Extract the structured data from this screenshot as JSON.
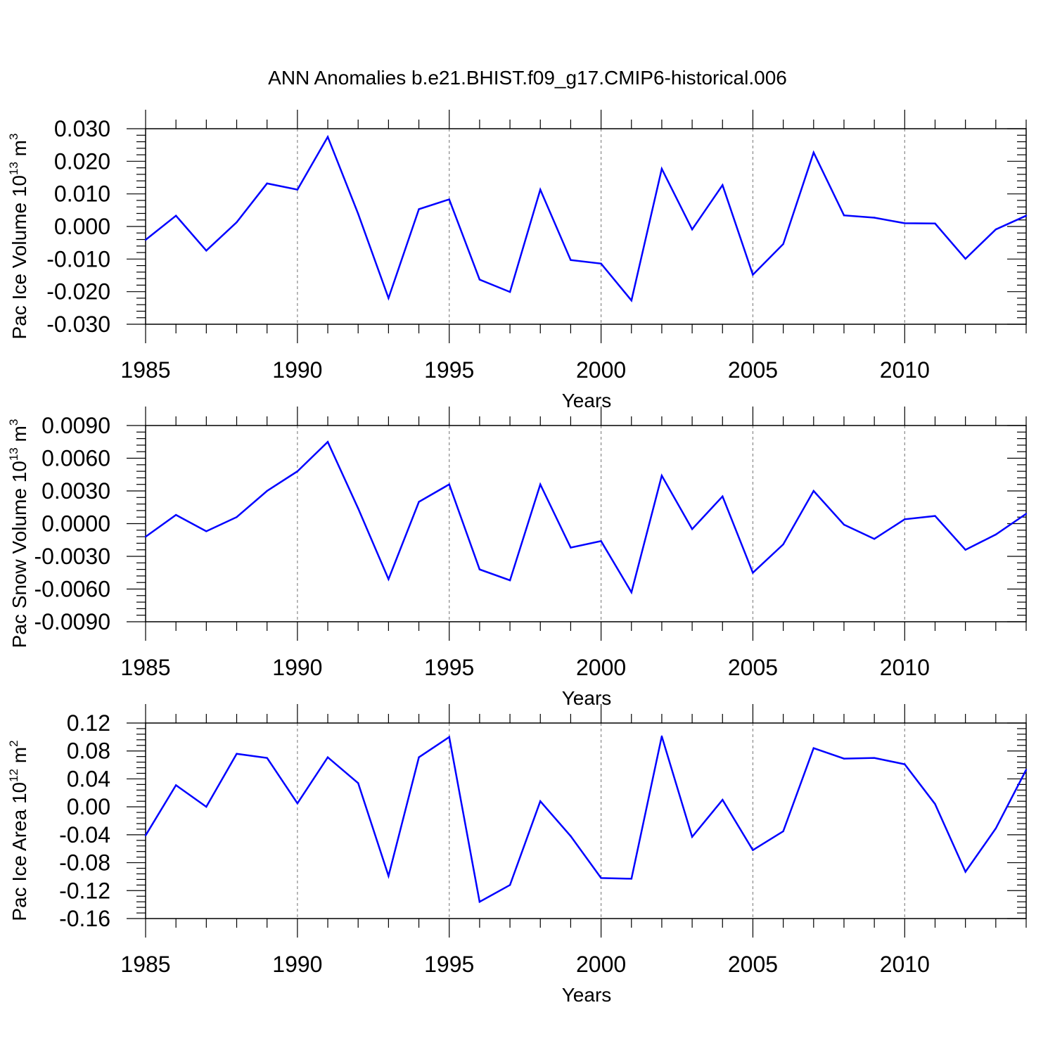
{
  "title": "ANN Anomalies b.e21.BHIST.f09_g17.CMIP6-historical.006",
  "chart_data": [
    {
      "type": "line",
      "ylabel": "Pac Ice Volume",
      "unit": {
        "base": "10",
        "exp": "13",
        "unit": "m",
        "unit_exp": "3"
      },
      "xlabel": "Years",
      "xlim": [
        1985,
        2014
      ],
      "ylim": [
        -0.03,
        0.03
      ],
      "xticks": [
        "1985",
        "1990",
        "1995",
        "2000",
        "2005",
        "2010"
      ],
      "yticks": [
        "0.030",
        "0.020",
        "0.010",
        "0.000",
        "-0.010",
        "-0.020",
        "-0.030"
      ],
      "color": "#0000ff",
      "years": [
        1985,
        1986,
        1987,
        1988,
        1989,
        1990,
        1991,
        1992,
        1993,
        1994,
        1995,
        1996,
        1997,
        1998,
        1999,
        2000,
        2001,
        2002,
        2003,
        2004,
        2005,
        2006,
        2007,
        2008,
        2009,
        2010,
        2011,
        2012,
        2013,
        2014
      ],
      "values": [
        -0.0041,
        0.0033,
        -0.0074,
        0.0013,
        0.0132,
        0.0113,
        0.0275,
        0.0039,
        -0.022,
        0.0053,
        0.0083,
        -0.0163,
        -0.0201,
        0.0113,
        -0.0103,
        -0.0114,
        -0.0227,
        0.0177,
        -0.0009,
        0.0127,
        -0.0148,
        -0.0054,
        0.0227,
        0.0034,
        0.0027,
        0.001,
        0.0009,
        -0.0099,
        -0.0009,
        0.0033
      ]
    },
    {
      "type": "line",
      "ylabel": "Pac Snow Volume",
      "unit": {
        "base": "10",
        "exp": "13",
        "unit": "m",
        "unit_exp": "3"
      },
      "xlabel": "Years",
      "xlim": [
        1985,
        2014
      ],
      "ylim": [
        -0.009,
        0.009
      ],
      "xticks": [
        "1985",
        "1990",
        "1995",
        "2000",
        "2005",
        "2010"
      ],
      "yticks": [
        "0.0090",
        "0.0060",
        "0.0030",
        "0.0000",
        "-0.0030",
        "-0.0060",
        "-0.0090"
      ],
      "color": "#0000ff",
      "years": [
        1985,
        1986,
        1987,
        1988,
        1989,
        1990,
        1991,
        1992,
        1993,
        1994,
        1995,
        1996,
        1997,
        1998,
        1999,
        2000,
        2001,
        2002,
        2003,
        2004,
        2005,
        2006,
        2007,
        2008,
        2009,
        2010,
        2011,
        2012,
        2013,
        2014
      ],
      "values": [
        -0.0012,
        0.0008,
        -0.0007,
        0.0006,
        0.003,
        0.0048,
        0.0075,
        0.0014,
        -0.0051,
        0.002,
        0.0036,
        -0.0042,
        -0.0052,
        0.0036,
        -0.0022,
        -0.0016,
        -0.0063,
        0.0044,
        -0.0005,
        0.0025,
        -0.0045,
        -0.0019,
        0.003,
        -0.0001,
        -0.0014,
        0.0004,
        0.0007,
        -0.0024,
        -0.001,
        0.0009
      ]
    },
    {
      "type": "line",
      "ylabel": "Pac Ice Area",
      "unit": {
        "base": "10",
        "exp": "12",
        "unit": "m",
        "unit_exp": "2"
      },
      "xlabel": "Years",
      "xlim": [
        1985,
        2014
      ],
      "ylim": [
        -0.16,
        0.12
      ],
      "xticks": [
        "1985",
        "1990",
        "1995",
        "2000",
        "2005",
        "2010"
      ],
      "yticks": [
        "0.12",
        "0.08",
        "0.04",
        "0.00",
        "-0.04",
        "-0.08",
        "-0.12",
        "-0.16"
      ],
      "color": "#0000ff",
      "years": [
        1985,
        1986,
        1987,
        1988,
        1989,
        1990,
        1991,
        1992,
        1993,
        1994,
        1995,
        1996,
        1997,
        1998,
        1999,
        2000,
        2001,
        2002,
        2003,
        2004,
        2005,
        2006,
        2007,
        2008,
        2009,
        2010,
        2011,
        2012,
        2013,
        2014
      ],
      "values": [
        -0.041,
        0.031,
        0.0,
        0.076,
        0.07,
        0.005,
        0.071,
        0.034,
        -0.099,
        0.071,
        0.1,
        -0.136,
        -0.112,
        0.008,
        -0.042,
        -0.102,
        -0.103,
        0.101,
        -0.043,
        0.01,
        -0.062,
        -0.035,
        0.084,
        0.069,
        0.07,
        0.061,
        0.004,
        -0.093,
        -0.031,
        0.053
      ]
    }
  ]
}
